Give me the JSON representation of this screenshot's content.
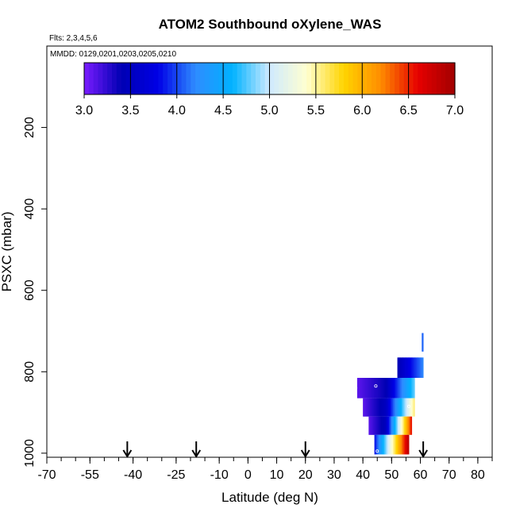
{
  "chart_data": {
    "type": "heatmap",
    "title": "ATOM2 Southbound oXylene_WAS",
    "flights_label": "Flts: 2,3,4,5,6",
    "dates_label": "MMDD: 0129,0201,0203,0205,0210",
    "xlabel": "Latitude (deg N)",
    "ylabel": "PSXC (mbar)",
    "xlim": [
      -70,
      85
    ],
    "ylim": [
      1010,
      0
    ],
    "x_ticks": [
      -70,
      -55,
      -40,
      -25,
      -10,
      0,
      10,
      20,
      30,
      40,
      50,
      60,
      70,
      80
    ],
    "x_tick_labels": [
      "-70",
      "-55",
      "-40",
      "-25",
      "-10",
      "0",
      "10",
      "20",
      "30",
      "40",
      "50",
      "60",
      "70",
      "80"
    ],
    "y_ticks": [
      200,
      400,
      600,
      800,
      1000
    ],
    "y_tick_labels": [
      "200",
      "400",
      "600",
      "800",
      "1000"
    ],
    "colorbar": {
      "min": 3.0,
      "max": 7.0,
      "ticks": [
        3.0,
        3.5,
        4.0,
        4.5,
        5.0,
        5.5,
        6.0,
        6.5,
        7.0
      ],
      "tick_labels": [
        "3.0",
        "3.5",
        "4.0",
        "4.5",
        "5.0",
        "5.5",
        "6.0",
        "6.5",
        "7.0"
      ],
      "colors": [
        "#7a1cff",
        "#0000b3",
        "#0000e6",
        "#2f8cff",
        "#00b2ff",
        "#cfeaff",
        "#ffffd0",
        "#ffd400",
        "#ff8c00",
        "#e60000",
        "#a10000"
      ]
    },
    "arrow_latitudes": [
      -42,
      -18,
      20,
      61
    ],
    "cells": [
      {
        "lat0": 52,
        "lat1": 61,
        "p0": 765,
        "p1": 815,
        "v0": 3.4,
        "v1": 4.2
      },
      {
        "lat0": 38,
        "lat1": 48,
        "p0": 815,
        "p1": 865,
        "v0": 3.1,
        "v1": 3.4
      },
      {
        "lat0": 48,
        "lat1": 58,
        "p0": 815,
        "p1": 865,
        "v0": 3.4,
        "v1": 4.8
      },
      {
        "lat0": 40,
        "lat1": 48,
        "p0": 865,
        "p1": 910,
        "v0": 3.1,
        "v1": 3.5
      },
      {
        "lat0": 48,
        "lat1": 58,
        "p0": 865,
        "p1": 910,
        "v0": 3.5,
        "v1": 5.6
      },
      {
        "lat0": 42,
        "lat1": 48,
        "p0": 910,
        "p1": 955,
        "v0": 3.1,
        "v1": 3.5
      },
      {
        "lat0": 48,
        "lat1": 57,
        "p0": 910,
        "p1": 955,
        "v0": 3.5,
        "v1": 6.6
      },
      {
        "lat0": 44,
        "lat1": 56,
        "p0": 955,
        "p1": 1003,
        "v0": 3.8,
        "v1": 6.9
      },
      {
        "lat0": 60.5,
        "lat1": 61,
        "p0": 705,
        "p1": 750,
        "v0": 4.1,
        "v1": 4.1
      }
    ],
    "markers": [
      {
        "lat": 37.5,
        "p": 840
      },
      {
        "lat": 44.5,
        "p": 835
      },
      {
        "lat": 56,
        "p": 885
      },
      {
        "lat": 45,
        "p": 995
      }
    ]
  }
}
